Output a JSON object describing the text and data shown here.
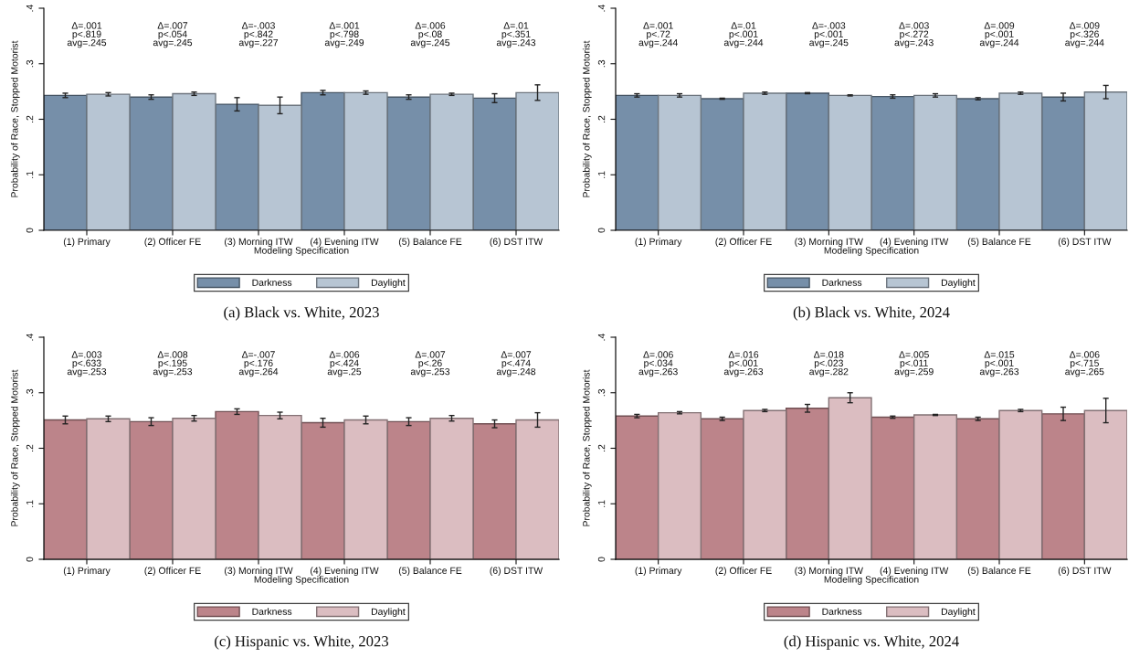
{
  "chart_data": [
    {
      "type": "bar",
      "title": "(a) Black vs. White, 2023",
      "xlabel": "Modeling Specification",
      "ylabel": "Probability of Race, Stopped Motorist",
      "categories": [
        "(1) Primary",
        "(2) Officer FE",
        "(3) Morning ITW",
        "(4) Evening ITW",
        "(5) Balance FE",
        "(6) DST ITW"
      ],
      "series": [
        {
          "name": "Darkness",
          "color": "#768fa9",
          "values": [
            0.243,
            0.24,
            0.227,
            0.248,
            0.24,
            0.238
          ],
          "errors": [
            0.004,
            0.004,
            0.012,
            0.004,
            0.004,
            0.008
          ]
        },
        {
          "name": "Daylight",
          "color": "#b7c5d3",
          "values": [
            0.245,
            0.246,
            0.225,
            0.248,
            0.245,
            0.248
          ],
          "errors": [
            0.003,
            0.003,
            0.015,
            0.003,
            0.002,
            0.014
          ]
        }
      ],
      "ylim": [
        0,
        0.4
      ],
      "yticks": [
        0,
        {
          "value": 0.1,
          "label": ".1"
        },
        {
          "value": 0.2,
          "label": ".2"
        },
        {
          "value": 0.3,
          "label": ".3"
        },
        {
          "value": 0.4,
          "label": ".4"
        }
      ],
      "legend": "bottom",
      "annotations": [
        "Δ=.001\np<.819\navg=.245",
        "Δ=.007\np<.054\navg=.245",
        "Δ=-.003\np<.842\navg=.227",
        "Δ=.001\np<.798\navg=.249",
        "Δ=.006\np<.08\navg=.245",
        "Δ=.01\np<.351\navg=.243"
      ]
    },
    {
      "type": "bar",
      "title": "(b) Black vs. White, 2024",
      "xlabel": "Modeling Specification",
      "ylabel": "Probability of Race, Stopped Motorist",
      "categories": [
        "(1) Primary",
        "(2) Officer FE",
        "(3) Morning ITW",
        "(4) Evening ITW",
        "(5) Balance FE",
        "(6) DST ITW"
      ],
      "series": [
        {
          "name": "Darkness",
          "color": "#768fa9",
          "values": [
            0.243,
            0.237,
            0.247,
            0.241,
            0.237,
            0.24
          ],
          "errors": [
            0.003,
            0.001,
            0.001,
            0.003,
            0.002,
            0.007
          ]
        },
        {
          "name": "Daylight",
          "color": "#b7c5d3",
          "values": [
            0.243,
            0.247,
            0.243,
            0.243,
            0.247,
            0.249
          ],
          "errors": [
            0.003,
            0.002,
            0.001,
            0.003,
            0.002,
            0.012
          ]
        }
      ],
      "ylim": [
        0,
        0.4
      ],
      "yticks": [
        0,
        {
          "value": 0.1,
          "label": ".1"
        },
        {
          "value": 0.2,
          "label": ".2"
        },
        {
          "value": 0.3,
          "label": ".3"
        },
        {
          "value": 0.4,
          "label": ".4"
        }
      ],
      "legend": "bottom",
      "annotations": [
        "Δ=.001\np<.72\navg=.244",
        "Δ=.01\np<.001\navg=.244",
        "Δ=-.003\np<.001\navg=.245",
        "Δ=.003\np<.272\navg=.243",
        "Δ=.009\np<.001\navg=.244",
        "Δ=.009\np<.326\navg=.244"
      ]
    },
    {
      "type": "bar",
      "title": "(c) Hispanic vs. White, 2023",
      "xlabel": "Modeling Specification",
      "ylabel": "Probability of Race, Stopped Motorist",
      "categories": [
        "(1) Primary",
        "(2) Officer FE",
        "(3) Morning ITW",
        "(4) Evening ITW",
        "(5) Balance FE",
        "(6) DST ITW"
      ],
      "series": [
        {
          "name": "Darkness",
          "color": "#bc848a",
          "values": [
            0.251,
            0.248,
            0.266,
            0.246,
            0.248,
            0.244
          ],
          "errors": [
            0.007,
            0.007,
            0.005,
            0.008,
            0.007,
            0.007
          ]
        },
        {
          "name": "Daylight",
          "color": "#dbbdc1",
          "values": [
            0.253,
            0.254,
            0.259,
            0.251,
            0.254,
            0.251
          ],
          "errors": [
            0.005,
            0.005,
            0.006,
            0.007,
            0.005,
            0.013
          ]
        }
      ],
      "ylim": [
        0,
        0.4
      ],
      "yticks": [
        0,
        {
          "value": 0.1,
          "label": ".1"
        },
        {
          "value": 0.2,
          "label": ".2"
        },
        {
          "value": 0.3,
          "label": ".3"
        },
        {
          "value": 0.4,
          "label": ".4"
        }
      ],
      "legend": "bottom",
      "annotations": [
        "Δ=.003\np<.633\navg=.253",
        "Δ=.008\np<.195\navg=.253",
        "Δ=-.007\np<.176\navg=.264",
        "Δ=.006\np<.424\navg=.25",
        "Δ=.007\np<.26\navg=.253",
        "Δ=.007\np<.474\navg=.248"
      ]
    },
    {
      "type": "bar",
      "title": "(d) Hispanic vs. White, 2024",
      "xlabel": "Modeling Specification",
      "ylabel": "Probability of Race, Stopped Motorist",
      "categories": [
        "(1) Primary",
        "(2) Officer FE",
        "(3) Morning ITW",
        "(4) Evening ITW",
        "(5) Balance FE",
        "(6) DST ITW"
      ],
      "series": [
        {
          "name": "Darkness",
          "color": "#bc848a",
          "values": [
            0.258,
            0.253,
            0.272,
            0.256,
            0.253,
            0.262
          ],
          "errors": [
            0.003,
            0.003,
            0.007,
            0.002,
            0.003,
            0.012
          ]
        },
        {
          "name": "Daylight",
          "color": "#dbbdc1",
          "values": [
            0.264,
            0.268,
            0.291,
            0.26,
            0.268,
            0.268
          ],
          "errors": [
            0.002,
            0.002,
            0.009,
            0.001,
            0.002,
            0.022
          ]
        }
      ],
      "ylim": [
        0,
        0.4
      ],
      "yticks": [
        0,
        {
          "value": 0.1,
          "label": ".1"
        },
        {
          "value": 0.2,
          "label": ".2"
        },
        {
          "value": 0.3,
          "label": ".3"
        },
        {
          "value": 0.4,
          "label": ".4"
        }
      ],
      "legend": "bottom",
      "annotations": [
        "Δ=.006\np<.034\navg=.263",
        "Δ=.016\np<.001\navg=.263",
        "Δ=.018\np<.023\navg=.282",
        "Δ=.005\np<.011\navg=.259",
        "Δ=.015\np<.001\navg=.263",
        "Δ=.006\np<.715\navg=.265"
      ]
    }
  ]
}
